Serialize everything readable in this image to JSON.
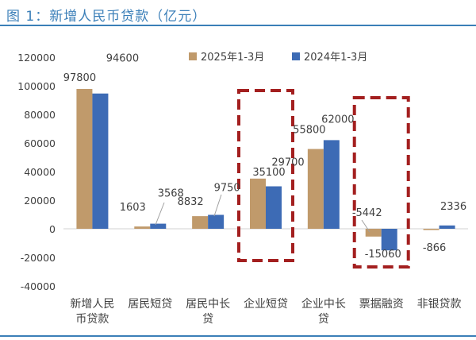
{
  "page": {
    "title": "图 1：新增人民币贷款（亿元）"
  },
  "chart_data": {
    "type": "bar",
    "title": "",
    "xlabel": "",
    "ylabel": "",
    "ylim": [
      -40000,
      120000
    ],
    "yticks": [
      "120000",
      "100000",
      "80000",
      "60000",
      "40000",
      "20000",
      "0",
      "-20000",
      "-40000"
    ],
    "categories": [
      [
        "新增人民",
        "币贷款"
      ],
      [
        "居民短贷"
      ],
      [
        "居民中长",
        "贷"
      ],
      [
        "企业短贷"
      ],
      [
        "企业中长",
        "贷"
      ],
      [
        "票据融资"
      ],
      [
        "非银贷款"
      ]
    ],
    "series": [
      {
        "name": "2025年1-3月",
        "color": "#c09a6b",
        "values": [
          97800,
          1603,
          8832,
          35100,
          55800,
          -5442,
          -866
        ],
        "labels": [
          "97800",
          "1603",
          "8832",
          "35100",
          "55800",
          "-5442",
          "-866"
        ]
      },
      {
        "name": "2024年1-3月",
        "color": "#3d6bb5",
        "values": [
          94600,
          3568,
          9750,
          29700,
          62000,
          -15060,
          2336
        ],
        "labels": [
          "94600",
          "3568",
          "9750",
          "29700",
          "62000",
          "-15060",
          "2336"
        ]
      }
    ],
    "grid": false,
    "legend": "top-center",
    "highlight_boxes": [
      "企业短贷",
      "票据融资"
    ],
    "highlight_color": "#a31f1f"
  }
}
